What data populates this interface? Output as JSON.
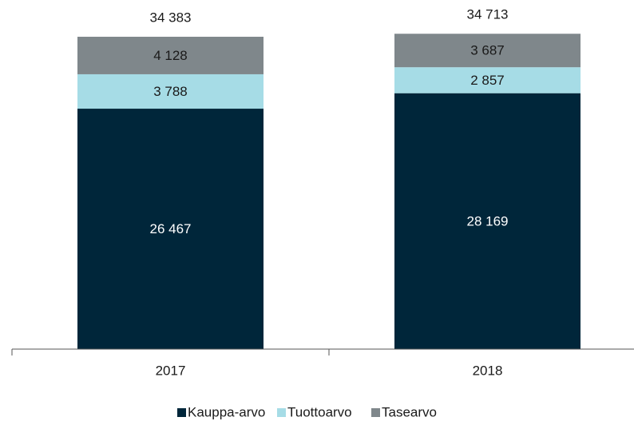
{
  "chart_data": {
    "type": "stacked_bar",
    "categories": [
      "2017",
      "2018"
    ],
    "series": [
      {
        "name": "Kauppa-arvo",
        "color": "#00263a",
        "values": [
          26467,
          28169
        ],
        "value_labels": [
          "26 467",
          "28 169"
        ]
      },
      {
        "name": "Tuottoarvo",
        "color": "#a6dce6",
        "values": [
          3788,
          2857
        ],
        "value_labels": [
          "3 788",
          "2 857"
        ]
      },
      {
        "name": "Tasearvo",
        "color": "#7f878b",
        "values": [
          4128,
          3687
        ],
        "value_labels": [
          "4 128",
          "3 687"
        ]
      }
    ],
    "totals": [
      34383,
      34713
    ],
    "total_labels": [
      "34 383",
      "34 713"
    ],
    "ylim": [
      0,
      35000
    ],
    "legend": "bottom"
  }
}
